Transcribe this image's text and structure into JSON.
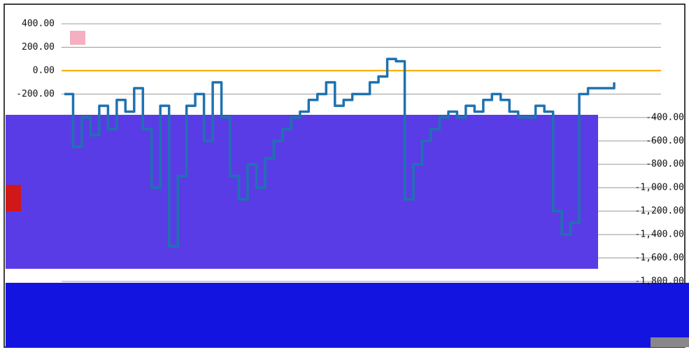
{
  "chart_data": {
    "type": "line",
    "color": "#1f72b0",
    "zero_line_color": "#f5a800",
    "grid": true,
    "ylim": [
      -1800,
      400
    ],
    "yticks": [
      {
        "value": 400,
        "label": "400.00"
      },
      {
        "value": 200,
        "label": "200.00"
      },
      {
        "value": 0,
        "label": "0.00"
      },
      {
        "value": -200,
        "label": "-200.00"
      },
      {
        "value": -400,
        "label": "-400.00"
      },
      {
        "value": -600,
        "label": "-600.00"
      },
      {
        "value": -800,
        "label": "-800.00"
      },
      {
        "value": -1000,
        "label": "-1,000.00"
      },
      {
        "value": -1200,
        "label": "-1,200.00"
      },
      {
        "value": -1400,
        "label": "-1,400.00"
      },
      {
        "value": -1600,
        "label": "-1,600.00"
      },
      {
        "value": -1800,
        "label": "-1,800.00"
      }
    ],
    "values": [
      -200,
      -650,
      -400,
      -550,
      -300,
      -500,
      -250,
      -350,
      -150,
      -500,
      -1000,
      -300,
      -1500,
      -900,
      -300,
      -200,
      -600,
      -100,
      -400,
      -900,
      -1100,
      -800,
      -1000,
      -750,
      -600,
      -500,
      -400,
      -350,
      -250,
      -200,
      -100,
      -300,
      -250,
      -200,
      -200,
      -100,
      -50,
      100,
      80,
      -1100,
      -800,
      -600,
      -500,
      -400,
      -350,
      -400,
      -300,
      -350,
      -250,
      -200,
      -250,
      -350,
      -400,
      -400,
      -300,
      -350,
      -1200,
      -1400,
      -1300,
      -200,
      -150,
      -150,
      -150,
      -100
    ]
  }
}
